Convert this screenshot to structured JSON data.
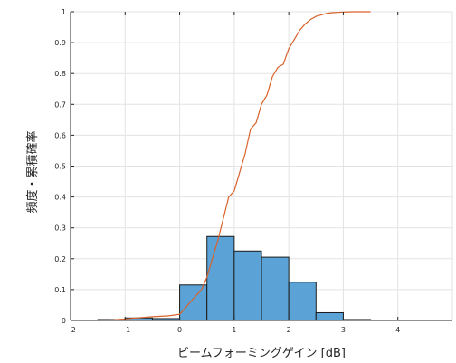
{
  "chart_data": {
    "type": "bar",
    "xlabel": "ビームフォーミングゲイン [dB]",
    "ylabel": "頻度・累積確率",
    "xlim": [
      -2,
      5
    ],
    "ylim": [
      0,
      1
    ],
    "xticks": [
      "−2",
      "−1",
      "0",
      "1",
      "2",
      "3",
      "4"
    ],
    "xtick_values": [
      -2,
      -1,
      0,
      1,
      2,
      3,
      4
    ],
    "yticks": [
      "0",
      "0.1",
      "0.2",
      "0.3",
      "0.4",
      "0.5",
      "0.6",
      "0.7",
      "0.8",
      "0.9",
      "1"
    ],
    "ytick_values": [
      0,
      0.1,
      0.2,
      0.3,
      0.4,
      0.5,
      0.6,
      0.7,
      0.8,
      0.9,
      1
    ],
    "grid": true,
    "series": [
      {
        "kind": "histogram",
        "color": "#5ba3d6",
        "edge_color": "#1a1a1a",
        "bin_edges": [
          -1.5,
          -1.0,
          -0.5,
          0.0,
          0.5,
          1.0,
          1.5,
          2.0,
          2.5,
          3.0,
          3.5
        ],
        "values": [
          0.003,
          0.008,
          0.006,
          0.115,
          0.272,
          0.225,
          0.205,
          0.124,
          0.025,
          0.003
        ]
      },
      {
        "kind": "line",
        "color": "#d9622b",
        "x": [
          -1.5,
          -1.2,
          -1.0,
          -0.8,
          -0.5,
          -0.2,
          0.0,
          0.05,
          0.2,
          0.4,
          0.5,
          0.6,
          0.7,
          0.8,
          0.9,
          1.0,
          1.1,
          1.2,
          1.3,
          1.4,
          1.5,
          1.6,
          1.7,
          1.8,
          1.9,
          2.0,
          2.1,
          2.2,
          2.3,
          2.4,
          2.5,
          2.6,
          2.7,
          2.8,
          2.9,
          3.0,
          3.2,
          3.5
        ],
        "y": [
          0.0,
          0.002,
          0.005,
          0.008,
          0.012,
          0.015,
          0.02,
          0.03,
          0.06,
          0.1,
          0.14,
          0.2,
          0.26,
          0.33,
          0.4,
          0.42,
          0.48,
          0.54,
          0.62,
          0.64,
          0.7,
          0.73,
          0.79,
          0.82,
          0.83,
          0.88,
          0.91,
          0.94,
          0.96,
          0.975,
          0.985,
          0.99,
          0.995,
          0.997,
          0.998,
          0.999,
          1.0,
          1.0
        ]
      }
    ]
  }
}
